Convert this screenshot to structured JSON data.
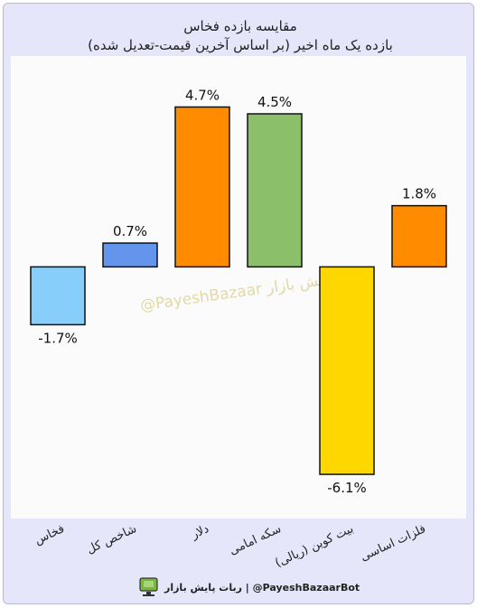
{
  "chart_data": {
    "type": "bar",
    "title": "مقایسه  بازده فخاس",
    "subtitle": "بازده یک ماه اخیر (بر اساس آخرین قیمت-تعدیل شده)",
    "categories": [
      "فخاس",
      "شاخص کل",
      "دلار",
      "سکه امامی",
      "بیت کوین (ریالی)",
      "فلزات اساسی"
    ],
    "values": [
      -1.7,
      0.7,
      4.7,
      4.5,
      -6.1,
      1.8
    ],
    "value_labels": [
      "-1.7%",
      "0.7%",
      "4.7%",
      "4.5%",
      "-6.1%",
      "1.8%"
    ],
    "bar_colors": [
      "#87cefa",
      "#6495ed",
      "#ff8c00",
      "#8bbf6a",
      "#ffd700",
      "#ff8c00"
    ],
    "ylim": [
      -7.4,
      6.2
    ],
    "grid": false
  },
  "watermark": "@PayeshBazaar پایش بازار",
  "footer": {
    "text": "ربات پایش بازار  |  @PayeshBazaarBot",
    "icon": "monitor-icon",
    "icon_color": "#7cb342"
  }
}
